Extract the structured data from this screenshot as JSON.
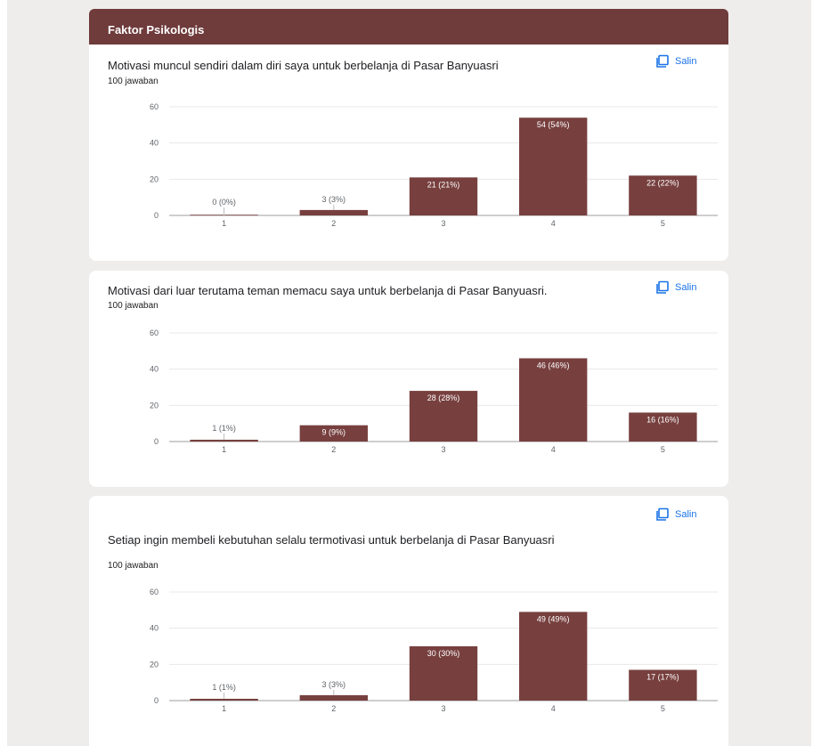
{
  "section": {
    "title": "Faktor Psikologis"
  },
  "copy_label": "Salin",
  "colors": {
    "bar": "#77403f",
    "header": "#6f3b3b",
    "link": "#1a73e8"
  },
  "questions": [
    {
      "title": "Motivasi muncul sendiri dalam diri saya untuk berbelanja di Pasar Banyuasri",
      "responses": "100 jawaban"
    },
    {
      "title": "Motivasi dari luar terutama teman memacu saya untuk berbelanja di Pasar Banyuasri.",
      "responses": "100 jawaban"
    },
    {
      "title": "Setiap ingin membeli kebutuhan selalu termotivasi untuk berbelanja di Pasar Banyuasri",
      "responses": "100 jawaban"
    }
  ],
  "chart_data": [
    {
      "type": "bar",
      "categories": [
        "1",
        "2",
        "3",
        "4",
        "5"
      ],
      "values": [
        0,
        3,
        21,
        54,
        22
      ],
      "data_labels": [
        "0 (0%)",
        "3 (3%)",
        "21 (21%)",
        "54 (54%)",
        "22 (22%)"
      ],
      "yticks": [
        0,
        20,
        40,
        60
      ],
      "ylim": [
        0,
        60
      ],
      "grid": true
    },
    {
      "type": "bar",
      "categories": [
        "1",
        "2",
        "3",
        "4",
        "5"
      ],
      "values": [
        1,
        9,
        28,
        46,
        16
      ],
      "data_labels": [
        "1 (1%)",
        "9 (9%)",
        "28 (28%)",
        "46 (46%)",
        "16 (16%)"
      ],
      "yticks": [
        0,
        20,
        40,
        60
      ],
      "ylim": [
        0,
        60
      ],
      "grid": true
    },
    {
      "type": "bar",
      "categories": [
        "1",
        "2",
        "3",
        "4",
        "5"
      ],
      "values": [
        1,
        3,
        30,
        49,
        17
      ],
      "data_labels": [
        "1 (1%)",
        "3 (3%)",
        "30 (30%)",
        "49 (49%)",
        "17 (17%)"
      ],
      "yticks": [
        0,
        20,
        40,
        60
      ],
      "ylim": [
        0,
        60
      ],
      "grid": true
    }
  ]
}
